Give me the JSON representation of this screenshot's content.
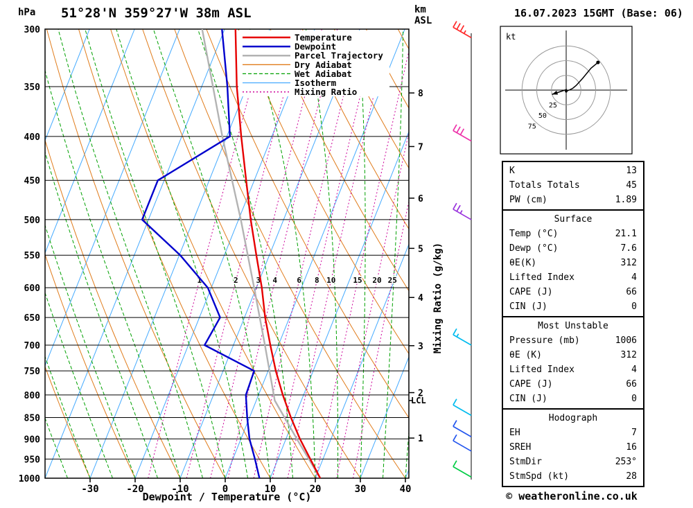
{
  "header": {
    "title": "51°28'N 359°27'W 38m ASL",
    "datetime": "16.07.2023 15GMT (Base: 06)"
  },
  "axes": {
    "pressure_label": "hPa",
    "pressure_ticks": [
      300,
      350,
      400,
      450,
      500,
      550,
      600,
      650,
      700,
      750,
      800,
      850,
      900,
      950,
      1000
    ],
    "temp_ticks": [
      -30,
      -20,
      -10,
      0,
      10,
      20,
      30,
      40
    ],
    "temp_axis_label": "Dewpoint / Temperature (°C)",
    "km_label_top": "km",
    "km_label_bottom": "ASL",
    "km_ticks": [
      {
        "km": 1,
        "p": 898
      },
      {
        "km": 2,
        "p": 795
      },
      {
        "km": 3,
        "p": 701
      },
      {
        "km": 4,
        "p": 616
      },
      {
        "km": 5,
        "p": 540
      },
      {
        "km": 6,
        "p": 472
      },
      {
        "km": 7,
        "p": 411
      },
      {
        "km": 8,
        "p": 356
      }
    ],
    "mixing_ratio_axis_label": "Mixing Ratio (g/kg)",
    "lcl_label": "LCL",
    "lcl_hpa": 812
  },
  "colors": {
    "temperature": "#e60000",
    "dewpoint": "#0000cd",
    "parcel": "#b3b3b3",
    "dry_adiabat": "#e07b1a",
    "wet_adiabat": "#00a000",
    "isotherm": "#44aaff",
    "mixing_ratio": "#cc0099",
    "grid": "#000000"
  },
  "legend": [
    {
      "label": "Temperature",
      "color": "#e60000",
      "dash": "none",
      "width": 2.5
    },
    {
      "label": "Dewpoint",
      "color": "#0000cd",
      "dash": "none",
      "width": 2.5
    },
    {
      "label": "Parcel Trajectory",
      "color": "#b3b3b3",
      "dash": "none",
      "width": 2.5
    },
    {
      "label": "Dry Adiabat",
      "color": "#e07b1a",
      "dash": "none",
      "width": 1.3
    },
    {
      "label": "Wet Adiabat",
      "color": "#00a000",
      "dash": "5 3",
      "width": 1.3
    },
    {
      "label": "Isotherm",
      "color": "#44aaff",
      "dash": "none",
      "width": 1.3
    },
    {
      "label": "Mixing Ratio",
      "color": "#cc0099",
      "dash": "2 3",
      "width": 1.5
    }
  ],
  "chart_data": {
    "type": "skewt_logp_sounding",
    "pressure_hpa": [
      1000,
      950,
      900,
      850,
      800,
      750,
      700,
      650,
      600,
      550,
      500,
      450,
      400,
      350,
      300
    ],
    "temperature_c": [
      21.1,
      17.2,
      13.1,
      9.2,
      5.4,
      1.7,
      -1.8,
      -5.4,
      -8.8,
      -12.9,
      -17.3,
      -21.8,
      -26.8,
      -32.2,
      -37.6
    ],
    "dewpoint_c": [
      7.6,
      4.9,
      1.9,
      -0.5,
      -2.8,
      -3.1,
      -16.4,
      -15.4,
      -20.8,
      -29.8,
      -41.4,
      -41.4,
      -29.3,
      -34.3,
      -40.6
    ],
    "parcel": {
      "pressure_hpa": [
        1000,
        900,
        812,
        700,
        600,
        500,
        400,
        300
      ],
      "temperature_c": [
        21.1,
        12.4,
        4.1,
        -3.0,
        -10.5,
        -19.5,
        -31.0,
        -45.0
      ]
    },
    "mixing_ratio_lines_gkg": [
      1,
      2,
      3,
      4,
      6,
      8,
      10,
      15,
      20,
      25
    ],
    "isotherm_step_c": 10,
    "dry_adiabat_step_c": 10,
    "wet_adiabat_step_c": 5,
    "winds": [
      {
        "p": 307,
        "speed_kt": 35,
        "color": "#ff2a2a"
      },
      {
        "p": 405,
        "speed_kt": 30,
        "color": "#ee33aa"
      },
      {
        "p": 500,
        "speed_kt": 25,
        "color": "#9933dd"
      },
      {
        "p": 700,
        "speed_kt": 15,
        "color": "#00bbee"
      },
      {
        "p": 845,
        "speed_kt": 10,
        "color": "#00bbee"
      },
      {
        "p": 895,
        "speed_kt": 10,
        "color": "#2255ee"
      },
      {
        "p": 930,
        "speed_kt": 10,
        "color": "#2255ee"
      },
      {
        "p": 997,
        "speed_kt": 10,
        "color": "#00cc44"
      }
    ],
    "hodograph_trace_uv_kt": [
      [
        0,
        -2
      ],
      [
        5,
        0
      ],
      [
        11,
        3
      ],
      [
        17,
        8
      ],
      [
        28,
        20
      ],
      [
        42,
        37
      ],
      [
        54,
        47
      ]
    ]
  },
  "hodograph": {
    "unit_label": "kt",
    "rings_kt": [
      25,
      50,
      75
    ],
    "storm_motion": {
      "dir_deg": 253,
      "speed_kt": 28
    }
  },
  "stats_panel": {
    "sections": [
      {
        "header": null,
        "rows": [
          {
            "label": "K",
            "value": "13"
          },
          {
            "label": "Totals Totals",
            "value": "45"
          },
          {
            "label": "PW (cm)",
            "value": "1.89"
          }
        ]
      },
      {
        "header": "Surface",
        "rows": [
          {
            "label": "Temp (°C)",
            "value": "21.1"
          },
          {
            "label": "Dewp (°C)",
            "value": "7.6"
          },
          {
            "label": "θE(K)",
            "value": "312"
          },
          {
            "label": "Lifted Index",
            "value": "4"
          },
          {
            "label": "CAPE (J)",
            "value": "66"
          },
          {
            "label": "CIN (J)",
            "value": "0"
          }
        ]
      },
      {
        "header": "Most Unstable",
        "rows": [
          {
            "label": "Pressure (mb)",
            "value": "1006"
          },
          {
            "label": "θE (K)",
            "value": "312"
          },
          {
            "label": "Lifted Index",
            "value": "4"
          },
          {
            "label": "CAPE (J)",
            "value": "66"
          },
          {
            "label": "CIN (J)",
            "value": "0"
          }
        ]
      },
      {
        "header": "Hodograph",
        "rows": [
          {
            "label": "EH",
            "value": "7"
          },
          {
            "label": "SREH",
            "value": "16"
          },
          {
            "label": "StmDir",
            "value": "253°"
          },
          {
            "label": "StmSpd (kt)",
            "value": "28"
          }
        ]
      }
    ]
  },
  "footer": {
    "copyright": "© weatheronline.co.uk"
  }
}
